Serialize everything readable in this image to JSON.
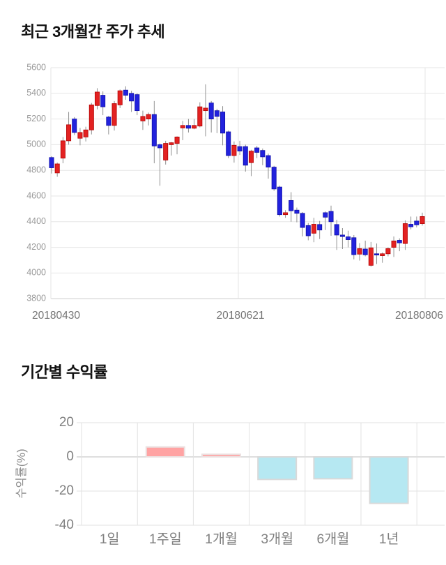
{
  "price_chart": {
    "title": "최근 3개월간 주가 추세"
  },
  "returns_chart": {
    "title": "기간별 수익률"
  },
  "chart_data": [
    {
      "type": "candlestick",
      "title": "최근 3개월간 주가 추세",
      "xlabel": "",
      "ylabel": "",
      "x_tick_labels": [
        "20180430",
        "20180621",
        "20180806"
      ],
      "y_ticks": [
        5600,
        5400,
        5200,
        5000,
        4800,
        4600,
        4400,
        4200,
        4000,
        3800
      ],
      "ylim": [
        3800,
        5600
      ],
      "grid": true,
      "up_color": "#e32222",
      "up_border": "#b30000",
      "down_color": "#2222dd",
      "down_border": "#0f0fa8",
      "wick_color": "#909090",
      "grid_color": "#e6e6e6",
      "axis_color": "#cccccc",
      "tick_label_color": "#999999",
      "x_label_color": "#757575",
      "candles_ohlc": [
        [
          4900,
          4910,
          4775,
          4820
        ],
        [
          4780,
          4860,
          4750,
          4850
        ],
        [
          4895,
          5060,
          4855,
          5030
        ],
        [
          5030,
          5255,
          5000,
          5155
        ],
        [
          5200,
          5215,
          5075,
          5095
        ],
        [
          5050,
          5130,
          4995,
          5095
        ],
        [
          5060,
          5140,
          5025,
          5115
        ],
        [
          5115,
          5325,
          5080,
          5310
        ],
        [
          5305,
          5440,
          5275,
          5410
        ],
        [
          5385,
          5415,
          5230,
          5295
        ],
        [
          5215,
          5225,
          5080,
          5150
        ],
        [
          5150,
          5340,
          5110,
          5320
        ],
        [
          5310,
          5430,
          5285,
          5420
        ],
        [
          5425,
          5455,
          5350,
          5385
        ],
        [
          5400,
          5420,
          5255,
          5340
        ],
        [
          5390,
          5400,
          5230,
          5265
        ],
        [
          5185,
          5265,
          5115,
          5220
        ],
        [
          5200,
          5250,
          5150,
          5235
        ],
        [
          5235,
          5340,
          4855,
          4990
        ],
        [
          5000,
          5010,
          4680,
          4975
        ],
        [
          4880,
          5030,
          4845,
          5010
        ],
        [
          5000,
          5020,
          4915,
          5015
        ],
        [
          5010,
          5065,
          4925,
          5060
        ],
        [
          5130,
          5185,
          5035,
          5150
        ],
        [
          5150,
          5200,
          5095,
          5128
        ],
        [
          5128,
          5200,
          5120,
          5150
        ],
        [
          5145,
          5330,
          5135,
          5295
        ],
        [
          5265,
          5470,
          5065,
          5285
        ],
        [
          5325,
          5340,
          5095,
          5200
        ],
        [
          5265,
          5280,
          5090,
          5220
        ],
        [
          5255,
          5300,
          4995,
          5090
        ],
        [
          5100,
          5110,
          4895,
          4915
        ],
        [
          4915,
          5025,
          4860,
          4995
        ],
        [
          4985,
          5030,
          4920,
          4950
        ],
        [
          4985,
          5000,
          4790,
          4840
        ],
        [
          4860,
          4960,
          4755,
          4950
        ],
        [
          4975,
          4990,
          4895,
          4940
        ],
        [
          4955,
          4970,
          4840,
          4905
        ],
        [
          4915,
          4930,
          4735,
          4825
        ],
        [
          4825,
          4835,
          4640,
          4655
        ],
        [
          4670,
          4680,
          4440,
          4455
        ],
        [
          4455,
          4490,
          4430,
          4470
        ],
        [
          4565,
          4630,
          4400,
          4485
        ],
        [
          4490,
          4510,
          4395,
          4465
        ],
        [
          4465,
          4475,
          4285,
          4355
        ],
        [
          4370,
          4390,
          4255,
          4290
        ],
        [
          4310,
          4430,
          4240,
          4380
        ],
        [
          4378,
          4406,
          4265,
          4335
        ],
        [
          4470,
          4480,
          4335,
          4435
        ],
        [
          4480,
          4525,
          4290,
          4400
        ],
        [
          4378,
          4415,
          4180,
          4296
        ],
        [
          4296,
          4350,
          4187,
          4284
        ],
        [
          4282,
          4330,
          4200,
          4260
        ],
        [
          4275,
          4296,
          4106,
          4143
        ],
        [
          4147,
          4233,
          4097,
          4190
        ],
        [
          4187,
          4252,
          4130,
          4142
        ],
        [
          4060,
          4242,
          4050,
          4196
        ],
        [
          4150,
          4230,
          4070,
          4140
        ],
        [
          4135,
          4160,
          4080,
          4150
        ],
        [
          4150,
          4200,
          4130,
          4190
        ],
        [
          4200,
          4285,
          4125,
          4250
        ],
        [
          4255,
          4270,
          4170,
          4235
        ],
        [
          4230,
          4410,
          4180,
          4385
        ],
        [
          4380,
          4440,
          4340,
          4360
        ],
        [
          4405,
          4440,
          4355,
          4375
        ],
        [
          4385,
          4470,
          4370,
          4440
        ]
      ]
    },
    {
      "type": "bar",
      "title": "기간별 수익률",
      "xlabel": "",
      "ylabel": "수익률(%)",
      "categories": [
        "1일",
        "1주일",
        "1개월",
        "3개월",
        "6개월",
        "1년"
      ],
      "values": [
        0,
        5.8,
        1.5,
        -13.2,
        -12.8,
        -27.2
      ],
      "y_ticks": [
        20,
        0,
        -20,
        -40
      ],
      "ylim": [
        -40,
        20
      ],
      "grid": true,
      "legend": "none",
      "positive_color": "#ffa3a3",
      "positive_border": "#ebe0e0",
      "negative_color": "#b6e8f2",
      "negative_border": "#d9d9d9",
      "grid_color": "#e2e2e2",
      "zero_line_color": "#bdbdbd",
      "tick_label_color": "#808080",
      "axis_title_color": "#8c8c8c"
    }
  ]
}
